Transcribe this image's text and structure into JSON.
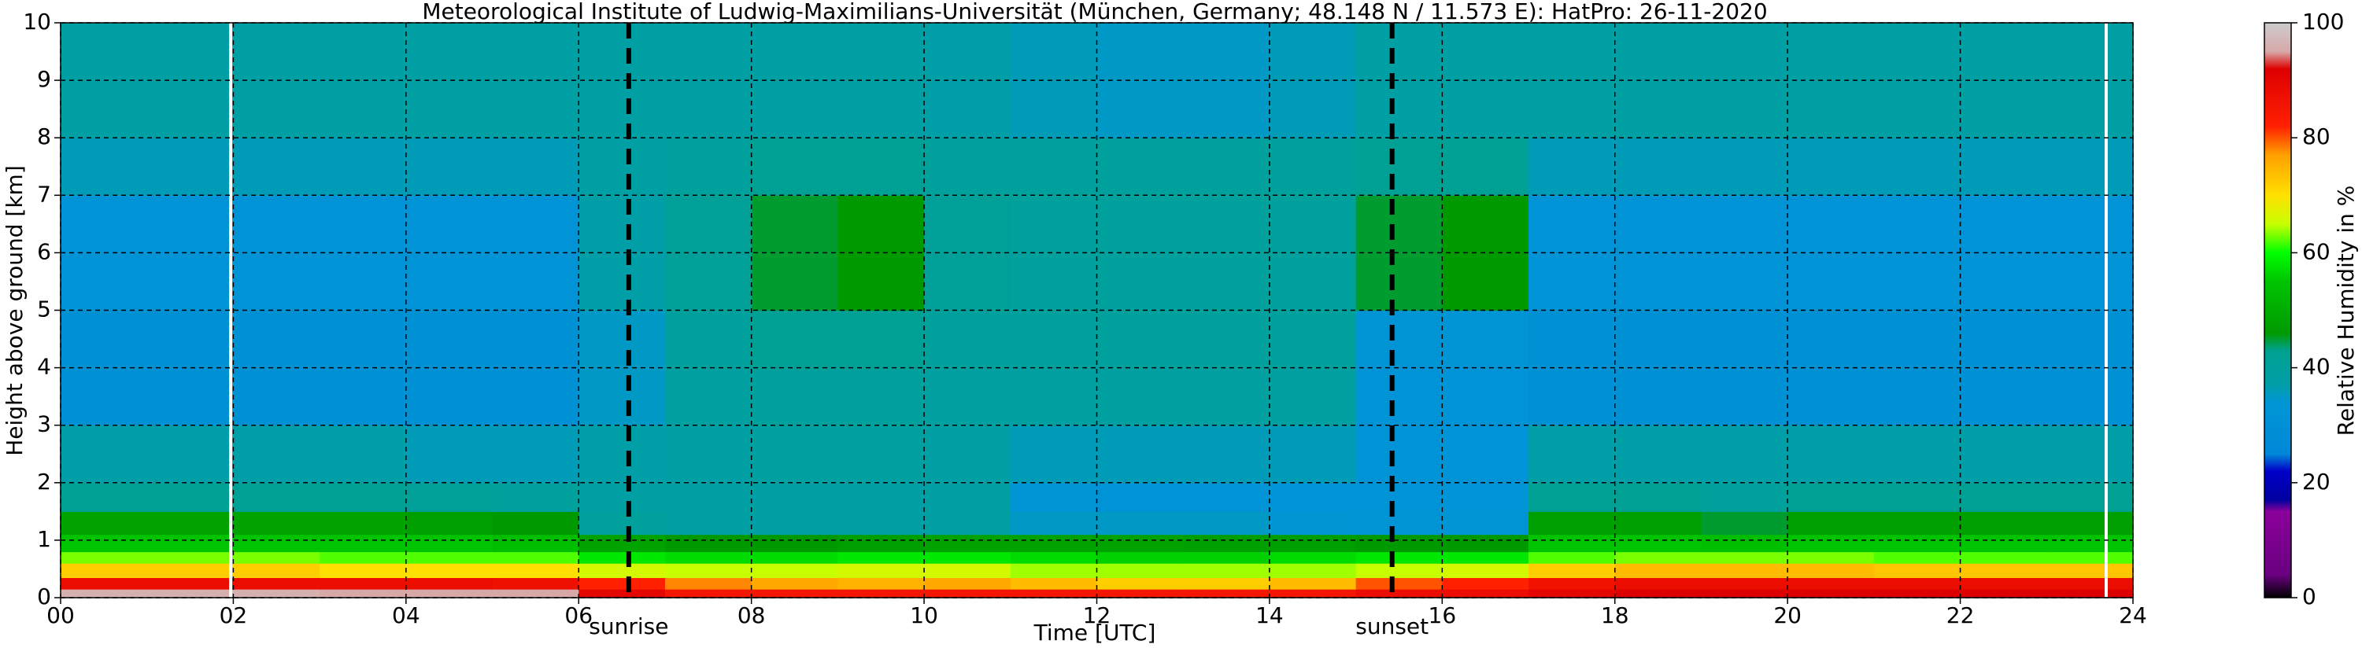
{
  "chart_data": {
    "type": "heatmap",
    "title": "Meteorological Institute of Ludwig-Maximilians-Universität (München, Germany; 48.148 N / 11.573 E):    HatPro: 26-11-2020",
    "xlabel": "Time [UTC]",
    "ylabel": "Height above ground [km]",
    "colorbar_label": "Relative Humidity in %",
    "xlim": [
      0,
      24
    ],
    "ylim": [
      0,
      10
    ],
    "clim": [
      0,
      100
    ],
    "xticks": [
      {
        "value": 0,
        "label": "00"
      },
      {
        "value": 2,
        "label": "02"
      },
      {
        "value": 4,
        "label": "04"
      },
      {
        "value": 6,
        "label": "06"
      },
      {
        "value": 8,
        "label": "08"
      },
      10,
      12,
      14,
      16,
      18,
      20,
      22,
      24
    ],
    "yticks": [
      0,
      1,
      2,
      3,
      4,
      5,
      6,
      7,
      8,
      9,
      10
    ],
    "cticks": [
      0,
      20,
      40,
      60,
      80,
      100
    ],
    "grid": true,
    "colormap": [
      [
        0,
        "#000000"
      ],
      [
        4,
        "#6a0080"
      ],
      [
        15,
        "#8a009a"
      ],
      [
        17,
        "#0000a0"
      ],
      [
        22,
        "#0000c8"
      ],
      [
        25,
        "#0088d8"
      ],
      [
        34,
        "#0096d4"
      ],
      [
        37,
        "#009fa8"
      ],
      [
        43,
        "#00a090"
      ],
      [
        46,
        "#009a00"
      ],
      [
        55,
        "#00c400"
      ],
      [
        60,
        "#00ff00"
      ],
      [
        65,
        "#c8ff00"
      ],
      [
        70,
        "#ffe000"
      ],
      [
        77,
        "#ffa000"
      ],
      [
        82,
        "#ff2000"
      ],
      [
        92,
        "#dd0000"
      ],
      [
        95,
        "#d8a8a8"
      ],
      [
        100,
        "#cccccc"
      ]
    ],
    "x_edges": [
      0,
      1,
      2,
      3,
      4,
      5,
      6,
      7,
      8,
      9,
      10,
      11,
      12,
      13,
      14,
      15,
      16,
      17,
      18,
      19,
      20,
      21,
      22,
      23,
      24
    ],
    "y_edges": [
      0,
      0.15,
      0.35,
      0.6,
      0.8,
      1.1,
      1.5,
      2,
      3,
      4,
      5,
      7,
      8,
      10
    ],
    "z": [
      [
        96,
        96,
        96,
        95,
        95,
        95,
        90,
        85,
        85,
        85,
        85,
        85,
        85,
        85,
        85,
        88,
        88,
        90,
        92,
        92,
        92,
        92,
        92,
        92
      ],
      [
        88,
        88,
        88,
        88,
        88,
        87,
        82,
        78,
        76,
        75,
        76,
        74,
        72,
        72,
        74,
        80,
        82,
        86,
        88,
        88,
        88,
        88,
        88,
        88
      ],
      [
        72,
        72,
        72,
        70,
        70,
        70,
        66,
        65,
        65,
        66,
        66,
        64,
        64,
        64,
        64,
        65,
        66,
        72,
        74,
        74,
        74,
        73,
        73,
        73
      ],
      [
        63,
        63,
        63,
        62,
        62,
        62,
        58,
        57,
        57,
        58,
        58,
        57,
        56,
        56,
        57,
        58,
        58,
        62,
        63,
        63,
        63,
        62,
        62,
        62
      ],
      [
        55,
        55,
        55,
        55,
        55,
        54,
        48,
        46,
        46,
        47,
        48,
        48,
        48,
        47,
        47,
        46,
        46,
        55,
        55,
        54,
        55,
        55,
        55,
        55
      ],
      [
        48,
        48,
        48,
        48,
        47,
        46,
        40,
        38,
        38,
        38,
        38,
        35,
        35,
        35,
        34,
        33,
        33,
        47,
        47,
        45,
        47,
        47,
        47,
        47
      ],
      [
        42,
        42,
        42,
        42,
        41,
        40,
        38,
        38,
        38,
        38,
        38,
        33,
        32,
        32,
        32,
        32,
        32,
        42,
        42,
        40,
        42,
        42,
        42,
        42
      ],
      [
        37,
        37,
        37,
        37,
        36,
        36,
        37,
        38,
        39,
        39,
        38,
        36,
        36,
        36,
        36,
        32,
        32,
        37,
        37,
        37,
        37,
        37,
        37,
        37
      ],
      [
        31,
        31,
        31,
        31,
        31,
        31,
        35,
        39,
        40,
        40,
        39,
        39,
        39,
        39,
        39,
        32,
        32,
        31,
        31,
        31,
        31,
        31,
        31,
        31
      ],
      [
        31,
        31,
        31,
        31,
        31,
        31,
        35,
        40,
        42,
        42,
        40,
        40,
        40,
        40,
        40,
        33,
        33,
        31,
        31,
        31,
        31,
        31,
        31,
        31
      ],
      [
        32,
        32,
        32,
        32,
        32,
        32,
        37,
        41,
        45,
        46,
        41,
        40,
        40,
        40,
        40,
        45,
        46,
        32,
        32,
        32,
        32,
        32,
        32,
        32
      ],
      [
        36,
        36,
        36,
        36,
        36,
        36,
        38,
        40,
        42,
        42,
        40,
        40,
        40,
        40,
        40,
        42,
        42,
        36,
        36,
        36,
        36,
        36,
        36,
        36
      ],
      [
        38,
        38,
        38,
        38,
        38,
        38,
        38,
        38,
        38,
        38,
        37,
        36,
        35,
        35,
        36,
        38,
        38,
        38,
        38,
        38,
        38,
        38,
        38,
        38
      ]
    ],
    "missing_x": [
      1.97,
      23.69
    ],
    "annotations": [
      {
        "x": 6.58,
        "text": "sunrise"
      },
      {
        "x": 15.42,
        "text": "sunset"
      }
    ]
  }
}
